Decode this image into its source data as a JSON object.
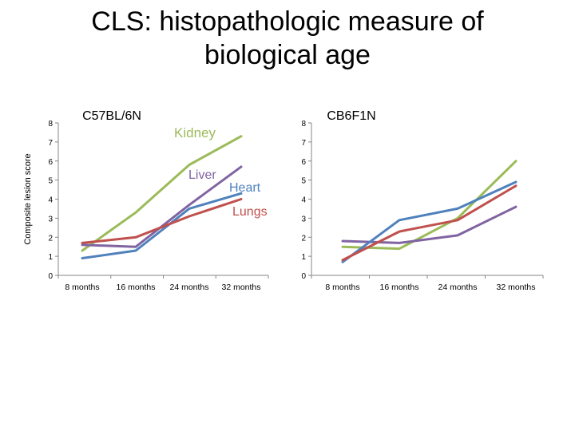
{
  "slide": {
    "title_line1": "CLS: histopathologic measure of",
    "title_line2": "biological age"
  },
  "chart_data": [
    {
      "type": "line",
      "title": "C57BL/6N",
      "ylabel": "Composite lesion score",
      "xlabel": "",
      "categories": [
        "8 months",
        "16 months",
        "24 months",
        "32 months"
      ],
      "ylim": [
        0,
        8
      ],
      "yticks": [
        0,
        1,
        2,
        3,
        4,
        5,
        6,
        7,
        8
      ],
      "grid": false,
      "series": [
        {
          "name": "Kidney",
          "color": "#9BBB59",
          "values": [
            1.3,
            3.3,
            5.8,
            7.3
          ]
        },
        {
          "name": "Liver",
          "color": "#8064A2",
          "values": [
            1.6,
            1.5,
            3.7,
            5.7
          ]
        },
        {
          "name": "Heart",
          "color": "#4F81BD",
          "values": [
            0.9,
            1.3,
            3.5,
            4.3
          ]
        },
        {
          "name": "Lungs",
          "color": "#C0504D",
          "values": [
            1.7,
            2.0,
            3.1,
            4.0
          ]
        }
      ]
    },
    {
      "type": "line",
      "title": "CB6F1N",
      "ylabel": "",
      "xlabel": "",
      "categories": [
        "8 months",
        "16 months",
        "24 months",
        "32 months"
      ],
      "ylim": [
        0,
        8
      ],
      "yticks": [
        0,
        1,
        2,
        3,
        4,
        5,
        6,
        7,
        8
      ],
      "grid": false,
      "series": [
        {
          "color": "#9BBB59",
          "values": [
            1.5,
            1.4,
            3.0,
            6.0
          ]
        },
        {
          "color": "#8064A2",
          "values": [
            1.8,
            1.7,
            2.1,
            3.6
          ]
        },
        {
          "color": "#4F81BD",
          "values": [
            0.7,
            2.9,
            3.5,
            4.9
          ]
        },
        {
          "color": "#C0504D",
          "values": [
            0.8,
            2.3,
            2.9,
            4.7
          ]
        }
      ]
    }
  ]
}
